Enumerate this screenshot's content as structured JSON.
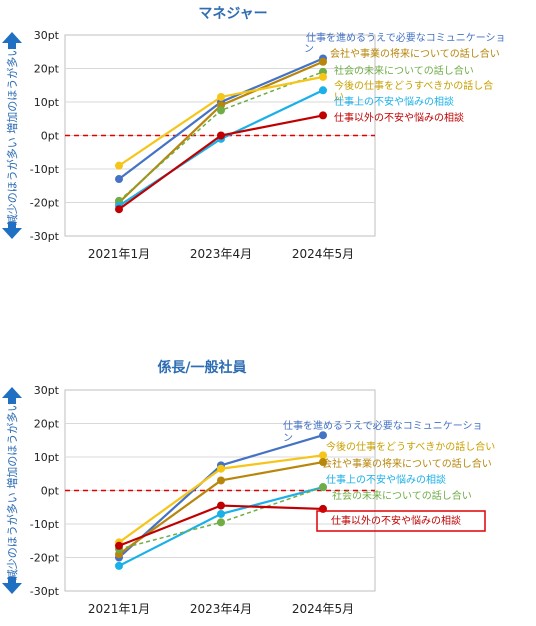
{
  "colors": {
    "blue": "#4472c4",
    "brown": "#b8860b",
    "green": "#70ad47",
    "yellow": "#f5c518",
    "cyan": "#1ab0e8",
    "red": "#c00000",
    "title": "#2e6db4",
    "arrow": "#1f6fc2"
  },
  "chart_data": [
    {
      "type": "line",
      "title": "マネジャー",
      "ylabel": "減少のほうが多い 増加のほうが多い",
      "categories": [
        "2021年1月",
        "2023年4月",
        "2024年5月"
      ],
      "ylim": [
        -30,
        30
      ],
      "yticks": [
        "-30pt",
        "-20pt",
        "-10pt",
        "0pt",
        "10pt",
        "20pt",
        "30pt"
      ],
      "reference_line": 0,
      "series": [
        {
          "name": "仕事を進めるうえで必要なコミュニケーション",
          "color": "#4472c4",
          "values": [
            -13,
            10,
            23
          ]
        },
        {
          "name": "会社や事業の将来についての話し合い",
          "color": "#b8860b",
          "values": [
            -20,
            9,
            22
          ]
        },
        {
          "name": "社会の未来についての話し合い",
          "color": "#70ad47",
          "dashed": true,
          "values": [
            -19.5,
            7.5,
            19
          ]
        },
        {
          "name": "今後の仕事をどうすべきかの話し合い",
          "color": "#f5c518",
          "values": [
            -9,
            11.5,
            17.5
          ]
        },
        {
          "name": "仕事上の不安や悩みの相談",
          "color": "#1ab0e8",
          "values": [
            -21,
            -1,
            13.5
          ]
        },
        {
          "name": "仕事以外の不安や悩みの相談",
          "color": "#c00000",
          "values": [
            -22,
            0,
            6
          ]
        }
      ]
    },
    {
      "type": "line",
      "title": "係長/一般社員",
      "ylabel": "減少のほうが多い 増加のほうが多い",
      "categories": [
        "2021年1月",
        "2023年4月",
        "2024年5月"
      ],
      "ylim": [
        -30,
        30
      ],
      "yticks": [
        "-30pt",
        "-20pt",
        "-10pt",
        "0pt",
        "10pt",
        "20pt",
        "30pt"
      ],
      "reference_line": 0,
      "series": [
        {
          "name": "仕事を進めるうえで必要なコミュニケーション",
          "color": "#4472c4",
          "values": [
            -20,
            7.5,
            16.5
          ]
        },
        {
          "name": "今後の仕事をどうすべきかの話し合い",
          "color": "#f5c518",
          "values": [
            -15.5,
            6.5,
            10.5
          ]
        },
        {
          "name": "会社や事業の将来についての話し合い",
          "color": "#b8860b",
          "values": [
            -19,
            3,
            8.5
          ]
        },
        {
          "name": "仕事上の不安や悩みの相談",
          "color": "#1ab0e8",
          "values": [
            -22.5,
            -7,
            1
          ]
        },
        {
          "name": "社会の未来についての話し合い",
          "color": "#70ad47",
          "dashed": true,
          "values": [
            -17.5,
            -9.5,
            1
          ]
        },
        {
          "name": "仕事以外の不安や悩みの相談",
          "color": "#c00000",
          "boxed": true,
          "values": [
            -16.5,
            -4.5,
            -5.5
          ]
        }
      ]
    }
  ]
}
